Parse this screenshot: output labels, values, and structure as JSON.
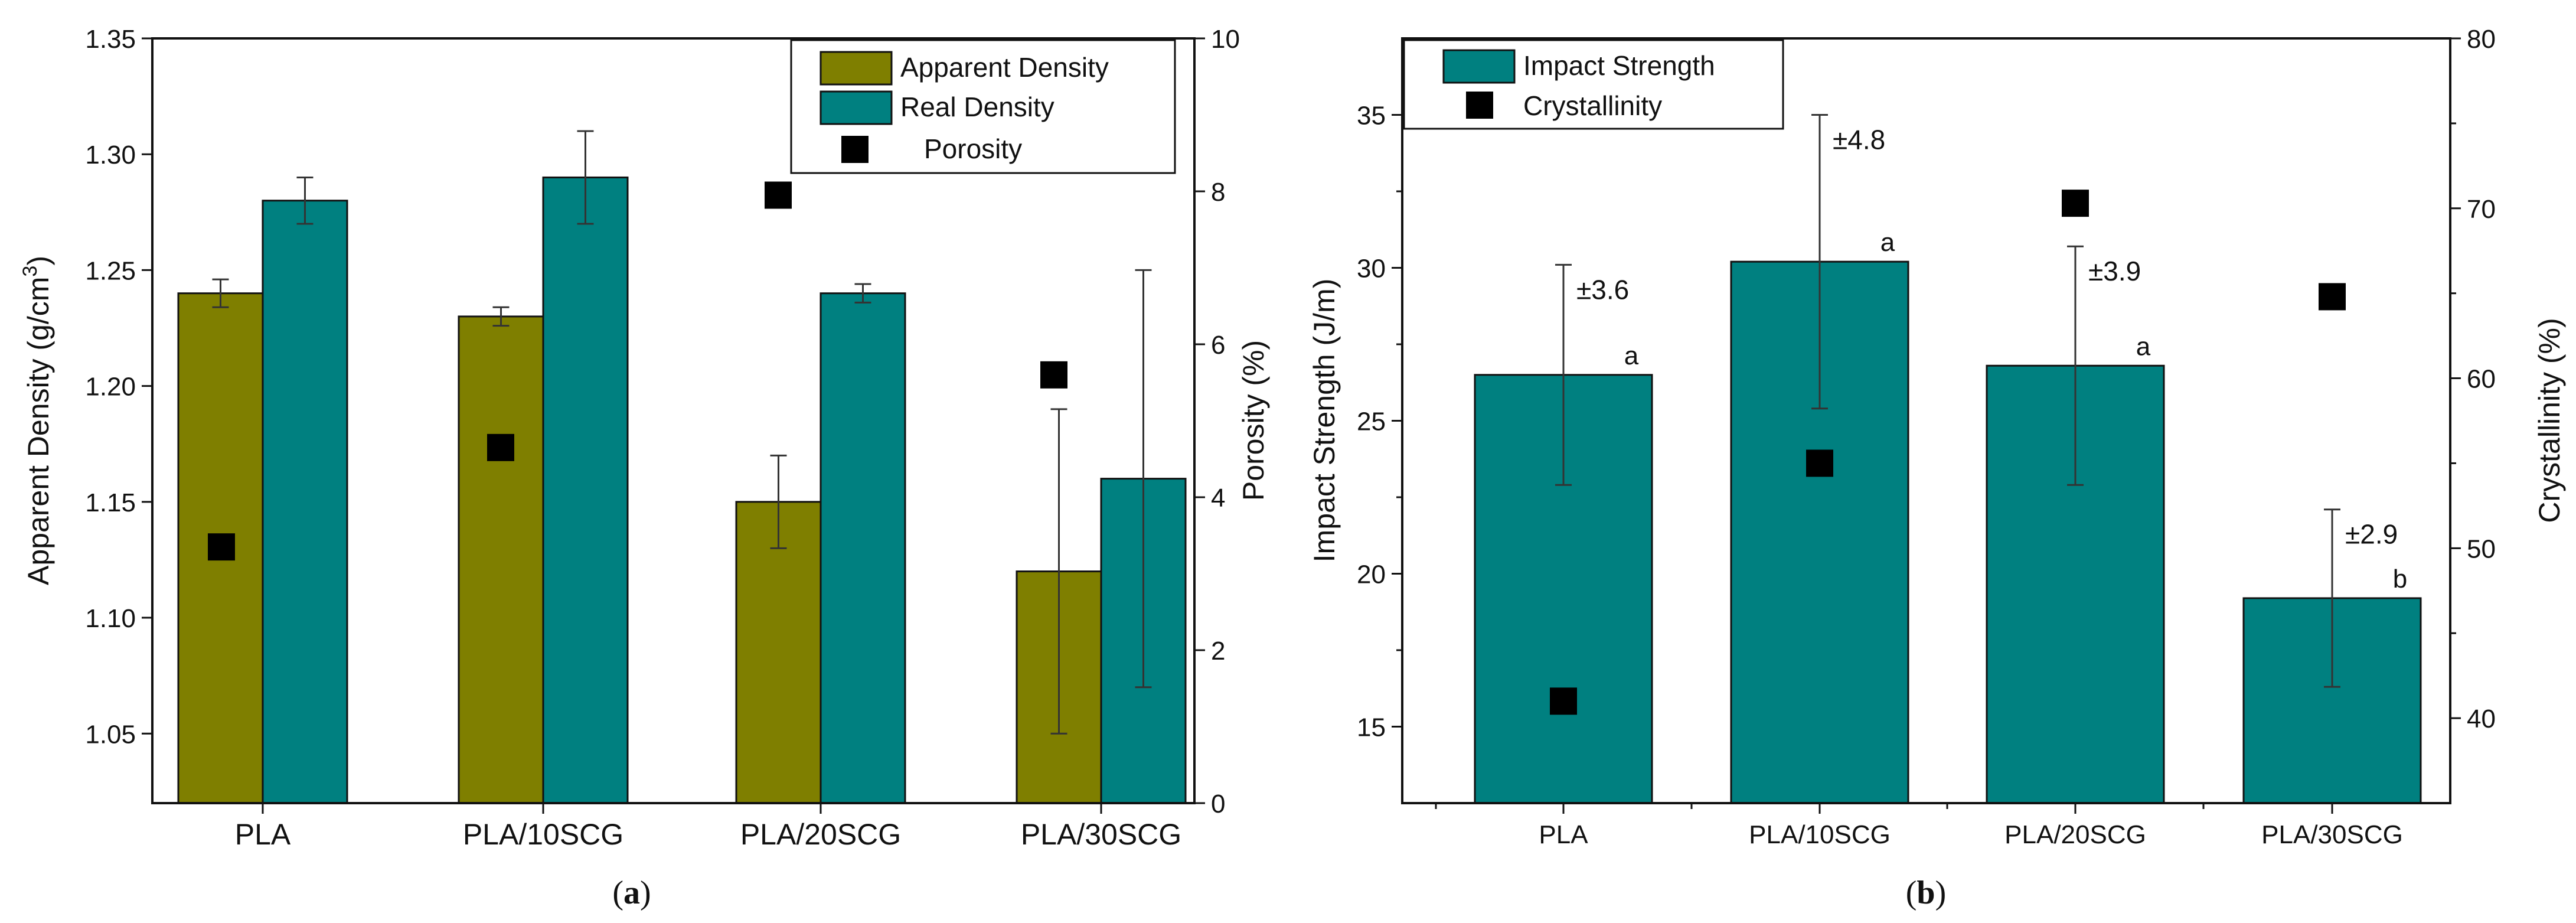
{
  "colors": {
    "olive": "#7f7f00",
    "teal": "#008080",
    "marker": "#000000",
    "axis": "#111111"
  },
  "chart_data": [
    {
      "type": "bar",
      "caption": "a",
      "categories": [
        "PLA",
        "PLA/10SCG",
        "PLA/20SCG",
        "PLA/30SCG"
      ],
      "series": [
        {
          "name": "Apparent Density",
          "axis": "left",
          "values": [
            1.24,
            1.23,
            1.15,
            1.12
          ],
          "errors": [
            0.006,
            0.004,
            0.02,
            0.07
          ]
        },
        {
          "name": "Real Density",
          "axis": "left",
          "values": [
            1.28,
            1.29,
            1.24,
            1.16
          ],
          "errors": [
            0.01,
            0.02,
            0.004,
            0.09
          ]
        },
        {
          "name": "Porosity",
          "axis": "right",
          "marker": "square",
          "values": [
            3.35,
            4.65,
            7.95,
            5.6
          ]
        }
      ],
      "left_axis": {
        "label_main": "Apparent Density (g/cm",
        "label_sup": "3",
        "label_close": ")",
        "range": [
          1.02,
          1.35
        ],
        "ticks": [
          "1.05",
          "1.10",
          "1.15",
          "1.20",
          "1.25",
          "1.30",
          "1.35"
        ]
      },
      "right_axis": {
        "label": "Porosity (%)",
        "range": [
          0,
          10
        ],
        "ticks": [
          "0",
          "2",
          "4",
          "6",
          "8",
          "10"
        ]
      },
      "legend": {
        "position": "top-right"
      }
    },
    {
      "type": "bar",
      "caption": "b",
      "categories": [
        "PLA",
        "PLA/10SCG",
        "PLA/20SCG",
        "PLA/30SCG"
      ],
      "series": [
        {
          "name": "Impact Strength",
          "axis": "left",
          "values": [
            26.5,
            30.2,
            26.8,
            19.2
          ],
          "errors": [
            3.6,
            4.8,
            3.9,
            2.9
          ],
          "error_labels": [
            "±3.6",
            "±4.8",
            "±3.9",
            "±2.9"
          ],
          "letters": [
            "a",
            "a",
            "a",
            "b"
          ]
        },
        {
          "name": "Crystallinity",
          "axis": "right",
          "marker": "square",
          "values": [
            41,
            55,
            70.3,
            64.8
          ]
        }
      ],
      "left_axis": {
        "label": "Impact Strength (J/m)",
        "range": [
          12.5,
          37.5
        ],
        "ticks": [
          "15",
          "20",
          "25",
          "30",
          "35"
        ]
      },
      "right_axis": {
        "label": "Crystallinity (%)",
        "range": [
          35,
          80
        ],
        "ticks": [
          "40",
          "50",
          "60",
          "70",
          "80"
        ]
      },
      "legend": {
        "position": "top-left"
      }
    }
  ]
}
